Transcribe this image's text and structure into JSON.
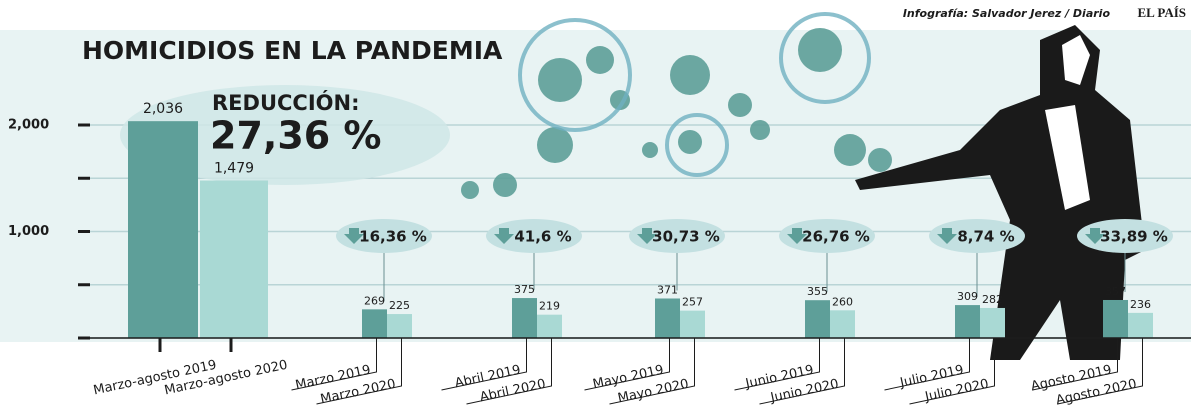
{
  "chart_data": {
    "type": "bar",
    "title": "HOMICIDIOS EN LA PANDEMIA",
    "credit": "Infografía: Salvador Jerez / Diario",
    "brand": "EL PAÍS",
    "ylim": [
      0,
      2600
    ],
    "yticks": [
      {
        "value": 1000,
        "label": "1,000"
      },
      {
        "value": 2000,
        "label": "2,000"
      }
    ],
    "yticks_minor": [
      0,
      500,
      1500
    ],
    "grid": true,
    "colors": [
      "#5e9f99",
      "#a9d9d4"
    ],
    "summary": {
      "categories": [
        "Marzo-agosto 2019",
        "Marzo-agosto 2020"
      ],
      "values": [
        2036,
        1479
      ],
      "value_labels": [
        "2,036",
        "1,479"
      ],
      "change_label": "REDUCCIÓN:",
      "change": "27,36 %"
    },
    "groups": [
      {
        "categories": [
          "Marzo 2019",
          "Marzo 2020"
        ],
        "values": [
          269,
          225
        ],
        "change": "16,36 %"
      },
      {
        "categories": [
          "Abril 2019",
          "Abril 2020"
        ],
        "values": [
          375,
          219
        ],
        "change": "41,6 %"
      },
      {
        "categories": [
          "Mayo 2019",
          "Mayo 2020"
        ],
        "values": [
          371,
          257
        ],
        "change": "30,73 %"
      },
      {
        "categories": [
          "Junio 2019",
          "Junio 2020"
        ],
        "values": [
          355,
          260
        ],
        "change": "26,76 %"
      },
      {
        "categories": [
          "Julio 2019",
          "Julio 2020"
        ],
        "values": [
          309,
          282
        ],
        "change": "8,74 %"
      },
      {
        "categories": [
          "Agosto 2019",
          "Agosto 2020"
        ],
        "values": [
          357,
          236
        ],
        "change": "33,89 %"
      }
    ]
  }
}
